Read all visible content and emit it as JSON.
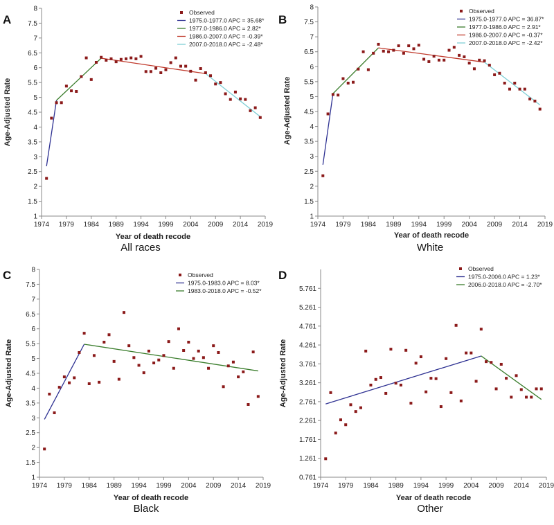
{
  "chart_data": [
    {
      "type": "scatter",
      "panel": "A",
      "group_label": "All races",
      "xlabel": "Year of death recode",
      "ylabel": "Age-Adjusted Rate",
      "xlim": [
        1974,
        2019
      ],
      "ylim": [
        1,
        8
      ],
      "xticks": [
        1974,
        1979,
        1984,
        1989,
        1994,
        1999,
        2004,
        2009,
        2014,
        2019
      ],
      "yticks": [
        1,
        1.5,
        2,
        2.5,
        3,
        3.5,
        4,
        4.5,
        5,
        5.5,
        6,
        6.5,
        7,
        7.5,
        8
      ],
      "ytick_labels": [
        "1",
        "1.5",
        "2",
        "2.5",
        "3",
        "3.5",
        "4",
        "4.5",
        "5",
        "5.5",
        "6",
        "6.5",
        "7",
        "7.5",
        "8"
      ],
      "legend": [
        "Observed",
        "1975.0-1977.0 APC = 35.68*",
        "1977.0-1986.0 APC = 2.82*",
        "1986.0-2007.0 APC = -0.39*",
        "2007.0-2018.0 APC = -2.48*"
      ],
      "observed": {
        "x": [
          1975,
          1976,
          1977,
          1978,
          1979,
          1980,
          1981,
          1982,
          1983,
          1984,
          1985,
          1986,
          1987,
          1988,
          1989,
          1990,
          1991,
          1992,
          1993,
          1994,
          1995,
          1996,
          1997,
          1998,
          1999,
          2000,
          2001,
          2002,
          2003,
          2004,
          2005,
          2006,
          2007,
          2008,
          2009,
          2010,
          2011,
          2012,
          2013,
          2014,
          2015,
          2016,
          2017,
          2018
        ],
        "y": [
          2.27,
          4.3,
          4.82,
          4.82,
          5.38,
          5.22,
          5.2,
          5.7,
          6.33,
          5.6,
          6.18,
          6.35,
          6.25,
          6.3,
          6.2,
          6.28,
          6.3,
          6.33,
          6.3,
          6.38,
          5.87,
          5.87,
          5.98,
          5.83,
          5.93,
          6.17,
          6.33,
          6.05,
          6.05,
          5.88,
          5.58,
          5.97,
          5.83,
          5.73,
          5.45,
          5.5,
          5.12,
          4.93,
          5.18,
          4.95,
          4.93,
          4.55,
          4.65,
          4.32
        ]
      },
      "segments": [
        {
          "label": "1975.0-1977.0 APC = 35.68*",
          "color": "#2e3192",
          "x": [
            1975,
            1977
          ],
          "y": [
            2.68,
            4.9
          ]
        },
        {
          "label": "1977.0-1986.0 APC = 2.82*",
          "color": "#3a7d2c",
          "x": [
            1977,
            1986
          ],
          "y": [
            4.9,
            6.32
          ]
        },
        {
          "label": "1986.0-2007.0 APC = -0.39*",
          "color": "#c0392b",
          "x": [
            1986,
            2007
          ],
          "y": [
            6.32,
            5.8
          ]
        },
        {
          "label": "2007.0-2018.0 APC = -2.48*",
          "color": "#7fcfd6",
          "x": [
            2007,
            2018
          ],
          "y": [
            5.8,
            4.35
          ]
        }
      ]
    },
    {
      "type": "scatter",
      "panel": "B",
      "group_label": "White",
      "xlabel": "Year of death recode",
      "ylabel": "Age-Adjusted Rate",
      "xlim": [
        1974,
        2019
      ],
      "ylim": [
        1,
        8
      ],
      "xticks": [
        1974,
        1979,
        1984,
        1989,
        1994,
        1999,
        2004,
        2009,
        2014,
        2019
      ],
      "yticks": [
        1,
        1.5,
        2,
        2.5,
        3,
        3.5,
        4,
        4.5,
        5,
        5.5,
        6,
        6.5,
        7,
        7.5,
        8
      ],
      "ytick_labels": [
        "1",
        "1.5",
        "2",
        "2.5",
        "3",
        "3.5",
        "4",
        "4.5",
        "5",
        "5.5",
        "6",
        "6.5",
        "7",
        "7.5",
        "8"
      ],
      "legend": [
        "Observed",
        "1975.0-1977.0 APC = 36.87*",
        "1977.0-1986.0 APC = 2.91*",
        "1986.0-2007.0 APC = -0.37*",
        "2007.0-2018.0 APC = -2.42*"
      ],
      "observed": {
        "x": [
          1975,
          1976,
          1977,
          1978,
          1979,
          1980,
          1981,
          1982,
          1983,
          1984,
          1985,
          1986,
          1987,
          1988,
          1989,
          1990,
          1991,
          1992,
          1993,
          1994,
          1995,
          1996,
          1997,
          1998,
          1999,
          2000,
          2001,
          2002,
          2003,
          2004,
          2005,
          2006,
          2007,
          2008,
          2009,
          2010,
          2011,
          2012,
          2013,
          2014,
          2015,
          2016,
          2017,
          2018
        ],
        "y": [
          2.35,
          4.42,
          5.07,
          5.05,
          5.6,
          5.45,
          5.48,
          5.92,
          6.5,
          5.9,
          6.45,
          6.75,
          6.52,
          6.5,
          6.55,
          6.7,
          6.45,
          6.7,
          6.6,
          6.72,
          6.25,
          6.17,
          6.35,
          6.22,
          6.22,
          6.55,
          6.65,
          6.38,
          6.33,
          6.12,
          5.93,
          6.22,
          6.2,
          6.05,
          5.73,
          5.78,
          5.45,
          5.25,
          5.45,
          5.25,
          5.25,
          4.92,
          4.85,
          4.58
        ]
      },
      "segments": [
        {
          "label": "1975.0-1977.0 APC = 36.87*",
          "color": "#2e3192",
          "x": [
            1975,
            1977
          ],
          "y": [
            2.72,
            5.1
          ]
        },
        {
          "label": "1977.0-1986.0 APC = 2.91*",
          "color": "#3a7d2c",
          "x": [
            1977,
            1986
          ],
          "y": [
            5.1,
            6.63
          ]
        },
        {
          "label": "1986.0-2007.0 APC = -0.37*",
          "color": "#c0392b",
          "x": [
            1986,
            2007
          ],
          "y": [
            6.63,
            6.15
          ]
        },
        {
          "label": "2007.0-2018.0 APC = -2.42*",
          "color": "#7fcfd6",
          "x": [
            2007,
            2018
          ],
          "y": [
            6.15,
            4.72
          ]
        }
      ]
    },
    {
      "type": "scatter",
      "panel": "C",
      "group_label": "Black",
      "xlabel": "Year of death recode",
      "ylabel": "Age-Adjusted Rate",
      "xlim": [
        1974,
        2019
      ],
      "ylim": [
        1,
        8
      ],
      "xticks": [
        1974,
        1979,
        1984,
        1989,
        1994,
        1999,
        2004,
        2009,
        2014,
        2019
      ],
      "yticks": [
        1,
        1.5,
        2,
        2.5,
        3,
        3.5,
        4,
        4.5,
        5,
        5.5,
        6,
        6.5,
        7,
        7.5,
        8
      ],
      "ytick_labels": [
        "1",
        "1.5",
        "2",
        "2.5",
        "3",
        "3.5",
        "4",
        "4.5",
        "5",
        "5.5",
        "6",
        "6.5",
        "7",
        "7.5",
        "8"
      ],
      "legend": [
        "Observed",
        "1975.0-1983.0 APC = 8.03*",
        "1983.0-2018.0 APC = -0.52*"
      ],
      "observed": {
        "x": [
          1975,
          1976,
          1977,
          1978,
          1979,
          1980,
          1981,
          1982,
          1983,
          1984,
          1985,
          1986,
          1987,
          1988,
          1989,
          1990,
          1991,
          1992,
          1993,
          1994,
          1995,
          1996,
          1997,
          1998,
          1999,
          2000,
          2001,
          2002,
          2003,
          2004,
          2005,
          2006,
          2007,
          2008,
          2009,
          2010,
          2011,
          2012,
          2013,
          2014,
          2015,
          2016,
          2017,
          2018
        ],
        "y": [
          1.95,
          3.8,
          3.17,
          4.03,
          4.38,
          4.18,
          4.35,
          5.2,
          5.85,
          4.15,
          5.1,
          4.2,
          5.55,
          5.8,
          4.9,
          4.3,
          6.55,
          5.43,
          5.03,
          4.77,
          4.52,
          5.25,
          4.85,
          4.95,
          5.1,
          5.57,
          4.67,
          6.0,
          5.27,
          5.55,
          5.0,
          5.25,
          5.03,
          4.67,
          5.43,
          5.2,
          4.05,
          4.75,
          4.88,
          4.38,
          4.55,
          3.45,
          5.22,
          3.72
        ]
      },
      "segments": [
        {
          "label": "1975.0-1983.0 APC = 8.03*",
          "color": "#2e3192",
          "x": [
            1975,
            1983
          ],
          "y": [
            2.95,
            5.48
          ]
        },
        {
          "label": "1983.0-2018.0 APC = -0.52*",
          "color": "#3a7d2c",
          "x": [
            1983,
            2018
          ],
          "y": [
            5.48,
            4.58
          ]
        }
      ]
    },
    {
      "type": "scatter",
      "panel": "D",
      "group_label": "Other",
      "xlabel": "Year of death recode",
      "ylabel": "Age-Adjusted Rate",
      "xlim": [
        1974,
        2019
      ],
      "ylim": [
        0.761,
        6.261
      ],
      "xticks": [
        1974,
        1979,
        1984,
        1989,
        1994,
        1999,
        2004,
        2009,
        2014,
        2019
      ],
      "yticks": [
        0.761,
        1.261,
        1.761,
        2.261,
        2.761,
        3.261,
        3.761,
        4.261,
        4.761,
        5.261,
        5.761
      ],
      "ytick_labels": [
        "0.761",
        "1.261",
        "1.761",
        "2.261",
        "2.761",
        "3.261",
        "3.761",
        "4.261",
        "4.761",
        "5.261",
        "5.761"
      ],
      "legend": [
        "Observed",
        "1975.0-2006.0 APC = 1.23*",
        "2006.0-2018.0 APC = -2.70*"
      ],
      "observed": {
        "x": [
          1975,
          1976,
          1977,
          1978,
          1979,
          1980,
          1981,
          1982,
          1983,
          1984,
          1985,
          1986,
          1987,
          1988,
          1989,
          1990,
          1991,
          1992,
          1993,
          1994,
          1995,
          1996,
          1997,
          1998,
          1999,
          2000,
          2001,
          2002,
          2003,
          2004,
          2005,
          2006,
          2007,
          2008,
          2009,
          2010,
          2011,
          2012,
          2013,
          2014,
          2015,
          2016,
          2017,
          2018
        ],
        "y": [
          1.25,
          3.0,
          1.93,
          2.28,
          2.15,
          2.68,
          2.5,
          2.6,
          4.1,
          3.2,
          3.35,
          3.4,
          2.98,
          4.15,
          3.25,
          3.2,
          4.12,
          2.72,
          3.78,
          3.95,
          3.02,
          3.38,
          3.37,
          2.63,
          3.9,
          3.0,
          4.78,
          2.78,
          4.05,
          4.05,
          3.3,
          4.68,
          3.82,
          3.8,
          3.1,
          3.75,
          3.38,
          2.88,
          3.45,
          3.08,
          2.88,
          2.88,
          3.1,
          3.1
        ]
      },
      "segments": [
        {
          "label": "1975.0-2006.0 APC = 1.23*",
          "color": "#2e3192",
          "x": [
            1975,
            2006
          ],
          "y": [
            2.7,
            3.97
          ]
        },
        {
          "label": "2006.0-2018.0 APC = -2.70*",
          "color": "#3a7d2c",
          "x": [
            2006,
            2018
          ],
          "y": [
            3.97,
            2.82
          ]
        }
      ]
    }
  ],
  "colors": {
    "observed_marker": "#8b1a1a",
    "axis": "#888888",
    "text": "#222222"
  }
}
